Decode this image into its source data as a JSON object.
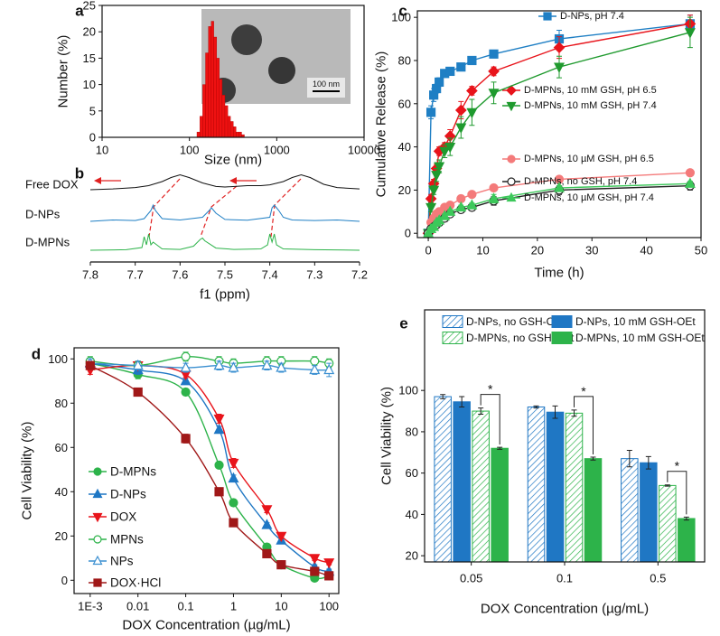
{
  "chart_data": [
    {
      "type": "histogram",
      "panel_label": "a",
      "x_label": "Size (nm)",
      "y_label": "Number (%)",
      "color": "#ee1111",
      "bins": [
        122,
        132,
        142,
        153,
        165,
        178,
        190,
        205,
        220,
        237,
        255,
        275,
        295,
        318,
        342,
        368,
        396,
        426
      ],
      "values": [
        1,
        4,
        10,
        16,
        21,
        22,
        19,
        15,
        11,
        8,
        6,
        4,
        3,
        2,
        1,
        1,
        0.5
      ],
      "xscale": "log",
      "xlim": [
        10,
        10000
      ],
      "xticks": [
        10,
        100,
        1000,
        10000
      ],
      "ylim": [
        0,
        25
      ],
      "yticks": [
        0,
        5,
        10,
        15,
        20,
        25
      ],
      "inset_scale_bar": "100 nm"
    },
    {
      "type": "spectrum",
      "panel_label": "b",
      "x_label": "f1 (ppm)",
      "xlim": [
        7.8,
        7.2
      ],
      "xticks": [
        7.8,
        7.7,
        7.6,
        7.5,
        7.4,
        7.3,
        7.2
      ],
      "series": [
        {
          "name": "Free DOX",
          "color": "#111111",
          "x": [
            7.8,
            7.75,
            7.7,
            7.67,
            7.64,
            7.62,
            7.6,
            7.58,
            7.55,
            7.52,
            7.5,
            7.45,
            7.42,
            7.4,
            7.37,
            7.35,
            7.33,
            7.31,
            7.28,
            7.25,
            7.2
          ],
          "values": [
            0,
            0.3,
            0.8,
            1.5,
            3,
            4.5,
            5.5,
            4.5,
            2.5,
            1.2,
            1,
            1.5,
            1.5,
            1.8,
            3,
            4.5,
            5.5,
            4.5,
            2,
            0.8,
            0.3
          ]
        },
        {
          "name": "D-NPs",
          "color": "#1f7fc4",
          "x": [
            7.8,
            7.75,
            7.7,
            7.68,
            7.665,
            7.66,
            7.655,
            7.64,
            7.6,
            7.55,
            7.535,
            7.53,
            7.52,
            7.5,
            7.45,
            7.4,
            7.395,
            7.39,
            7.385,
            7.38,
            7.37,
            7.35,
            7.3,
            7.25,
            7.2
          ],
          "values": [
            0,
            0.5,
            0.3,
            1,
            4,
            6,
            4,
            1,
            0.5,
            1.5,
            4,
            5,
            3,
            0.7,
            0.4,
            1.5,
            5,
            6,
            5,
            4,
            1.5,
            0.5,
            0.3,
            0.5,
            0
          ]
        },
        {
          "name": "D-MPNs",
          "color": "#2db34a",
          "x": [
            7.8,
            7.72,
            7.685,
            7.68,
            7.675,
            7.67,
            7.665,
            7.66,
            7.64,
            7.6,
            7.57,
            7.555,
            7.55,
            7.545,
            7.52,
            7.48,
            7.42,
            7.405,
            7.4,
            7.395,
            7.39,
            7.385,
            7.37,
            7.3,
            7.2
          ],
          "values": [
            0,
            0.2,
            1,
            5,
            2,
            6,
            2,
            3,
            0.5,
            0.3,
            1.5,
            4,
            4.5,
            3.5,
            0.8,
            0.3,
            0.5,
            2,
            6,
            3,
            6,
            2,
            0.5,
            0.2,
            0
          ]
        }
      ]
    },
    {
      "type": "line",
      "panel_label": "c",
      "x_label": "Time (h)",
      "y_label": "Cumulative Release (%)",
      "xlim": [
        -2,
        50
      ],
      "xticks": [
        0,
        10,
        20,
        30,
        40,
        50
      ],
      "ylim": [
        -2,
        103
      ],
      "yticks": [
        0,
        20,
        40,
        60,
        80,
        100
      ],
      "x": [
        0,
        0.5,
        1,
        1.5,
        2,
        3,
        4,
        6,
        8,
        12,
        24,
        48
      ],
      "series": [
        {
          "name": "D-NPs, pH 7.4",
          "color": "#1f7fc4",
          "marker": "square",
          "filled": true,
          "values": [
            0,
            56,
            64,
            67,
            70,
            74,
            75,
            77,
            80,
            83,
            90,
            97
          ],
          "errors": [
            0,
            3,
            3,
            2,
            2,
            1.5,
            1,
            1,
            1.5,
            1,
            4,
            4
          ]
        },
        {
          "name": "D-MPNs, 10 mM GSH, pH 6.5",
          "color": "#e8141b",
          "marker": "diamond",
          "filled": true,
          "values": [
            0,
            16,
            23,
            30,
            38,
            40,
            45,
            57,
            66,
            75,
            86,
            97
          ],
          "errors": [
            0,
            2,
            2,
            2,
            2,
            2,
            3,
            4,
            2,
            2,
            5,
            4
          ]
        },
        {
          "name": "D-MPNs, 10 mM GSH, pH 7.4",
          "color": "#1f9a2e",
          "marker": "triangle-down",
          "filled": true,
          "values": [
            0,
            12,
            20,
            27,
            31,
            38,
            40,
            49,
            56,
            65,
            77,
            93
          ],
          "errors": [
            0,
            2,
            2,
            3,
            3,
            3,
            4,
            5,
            6,
            5,
            5,
            7
          ]
        },
        {
          "name": "D-MPNs, 10 µM GSH, pH 6.5",
          "color": "#f47a7a",
          "marker": "circle",
          "filled": true,
          "values": [
            0,
            5,
            7,
            9,
            10,
            12,
            13,
            16,
            18,
            21,
            25,
            28
          ],
          "errors": [
            0,
            1,
            1,
            1,
            1,
            1,
            1,
            1,
            1,
            1,
            1,
            1
          ]
        },
        {
          "name": "D-MPNs, no GSH, pH 7.4",
          "color": "#222222",
          "marker": "circle",
          "filled": false,
          "values": [
            0,
            2,
            3,
            4,
            5,
            7,
            9,
            11,
            12,
            15,
            20,
            22
          ],
          "errors": [
            0,
            1,
            1,
            1,
            1,
            1,
            1,
            1,
            1,
            2,
            2,
            2
          ]
        },
        {
          "name": "D-MPNs, 10 µM GSH, pH 7.4",
          "color": "#3cc85a",
          "marker": "triangle",
          "filled": true,
          "values": [
            0,
            2,
            3,
            5,
            6,
            8,
            10,
            12,
            13,
            16,
            21,
            23
          ],
          "errors": [
            0,
            1,
            1,
            1,
            1,
            1,
            1,
            1,
            1,
            2,
            1,
            1
          ]
        }
      ]
    },
    {
      "type": "line",
      "panel_label": "d",
      "x_label": "DOX Concentration (µg/mL)",
      "y_label": "Cell Viability (%)",
      "smooth": true,
      "xscale": "log",
      "xlim": [
        0.00046,
        160
      ],
      "xticks": [
        {
          "value": 0.001,
          "label": "1E-3"
        },
        0.01,
        0.1,
        1,
        10,
        100
      ],
      "ylim": [
        -6,
        105
      ],
      "yticks": [
        0,
        20,
        40,
        60,
        80,
        100
      ],
      "x": [
        0.001,
        0.01,
        0.1,
        0.5,
        1,
        5,
        10,
        50,
        100
      ],
      "series": [
        {
          "name": "D-MPNs",
          "color": "#2db34a",
          "marker": "circle",
          "filled": true,
          "values": [
            98,
            93,
            85,
            52,
            35,
            15,
            7,
            1,
            2
          ],
          "errors": [
            2,
            2,
            1.5,
            1.5,
            1.5,
            1,
            1,
            0.5,
            0.5
          ]
        },
        {
          "name": "D-NPs",
          "color": "#1f77c4",
          "marker": "triangle",
          "filled": true,
          "values": [
            98,
            95,
            90,
            68,
            46,
            25,
            18,
            6,
            4
          ],
          "errors": [
            2,
            2,
            1.5,
            1.5,
            1.5,
            1,
            1,
            1,
            1
          ]
        },
        {
          "name": "DOX",
          "color": "#e8141b",
          "marker": "triangle-down",
          "filled": true,
          "values": [
            95,
            97,
            93,
            73,
            53,
            32,
            20,
            10,
            8
          ],
          "errors": [
            2,
            2,
            1.5,
            2,
            2,
            1.5,
            1,
            1,
            1
          ]
        },
        {
          "name": "MPNs",
          "color": "#2db34a",
          "marker": "circle",
          "filled": false,
          "values": [
            99,
            97,
            101,
            99,
            98,
            99,
            99,
            99,
            98
          ],
          "errors": [
            2,
            2,
            2,
            2,
            2,
            2,
            2,
            2,
            2
          ]
        },
        {
          "name": "NPs",
          "color": "#3a8fd0",
          "marker": "triangle",
          "filled": false,
          "values": [
            98,
            97,
            96,
            97,
            96,
            97,
            96,
            95,
            95
          ],
          "errors": [
            2,
            2,
            2,
            2,
            2,
            2,
            2,
            2,
            3
          ]
        },
        {
          "name": "DOX·HCl",
          "color": "#a01818",
          "marker": "square",
          "filled": true,
          "values": [
            97,
            85,
            64,
            40,
            26,
            12,
            7,
            4,
            2
          ],
          "errors": [
            1,
            1,
            2,
            1.5,
            1,
            1,
            1,
            0.5,
            0.5
          ]
        }
      ]
    },
    {
      "type": "bar",
      "panel_label": "e",
      "x_label": "DOX Concentration (µg/mL)",
      "y_label": "Cell Viability (%)",
      "categories": [
        "0.05",
        "0.1",
        "0.5"
      ],
      "ylim": [
        17,
        139
      ],
      "yticks": [
        20,
        40,
        60,
        80,
        100
      ],
      "series": [
        {
          "name": "D-NPs, no GSH-OEt",
          "color": "#1f77c4",
          "hatched": true,
          "values": [
            97,
            92,
            67
          ],
          "errors": [
            1,
            0.5,
            4
          ]
        },
        {
          "name": "D-NPs, 10 mM GSH-OEt",
          "color": "#1f77c4",
          "hatched": false,
          "values": [
            94.5,
            89.5,
            65
          ],
          "errors": [
            2.5,
            3,
            3
          ]
        },
        {
          "name": "D-MPNs, no GSH-OEt",
          "color": "#2db34a",
          "hatched": true,
          "values": [
            90,
            89,
            54
          ],
          "errors": [
            1.5,
            1.5,
            0.3
          ]
        },
        {
          "name": "D-MPNs, 10 mM GSH-OEt",
          "color": "#2db34a",
          "hatched": false,
          "values": [
            72,
            67,
            38
          ],
          "errors": [
            0.5,
            0.7,
            0.7
          ]
        }
      ],
      "annotations": [
        "*",
        "*",
        "*"
      ]
    }
  ]
}
